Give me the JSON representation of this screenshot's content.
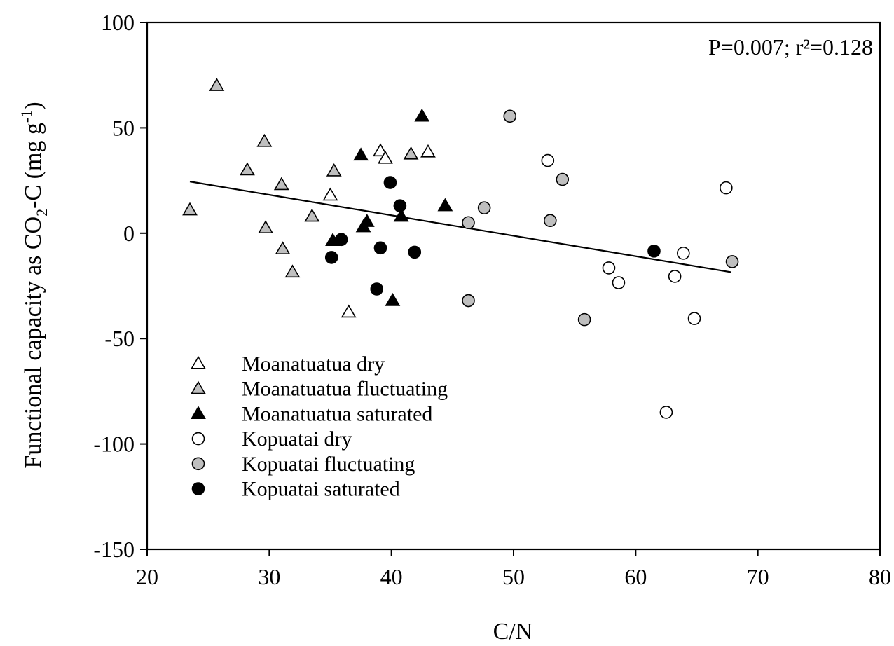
{
  "chart_data": {
    "type": "scatter",
    "xlabel": "C/N",
    "ylabel_parts": {
      "main": "Functional capacity as CO",
      "sub": "2",
      "mid": "-C (mg g",
      "sup": "-1",
      "end": ")"
    },
    "xlim": [
      20,
      80
    ],
    "ylim": [
      -150,
      100
    ],
    "xticks": [
      "20",
      "30",
      "40",
      "50",
      "60",
      "70",
      "80"
    ],
    "yticks": [
      "100",
      "50",
      "0",
      "-50",
      "-100",
      "-150"
    ],
    "annotation": "P=0.007; r²=0.128",
    "grid": false,
    "legend_position": "bottom-left",
    "trendline": {
      "x": [
        23.5,
        67.8
      ],
      "y": [
        24.5,
        -18.5
      ]
    },
    "series": [
      {
        "name": "Moanatuatua dry",
        "marker": "triangle",
        "fill": "#ffffff",
        "points": [
          [
            39.1,
            39
          ],
          [
            39.5,
            35.5
          ],
          [
            43.0,
            38.5
          ],
          [
            35.0,
            18
          ],
          [
            36.5,
            -37.5
          ]
        ]
      },
      {
        "name": "Moanatuatua fluctuating",
        "marker": "triangle",
        "fill": "#bfbfbf",
        "points": [
          [
            23.5,
            11
          ],
          [
            25.7,
            70
          ],
          [
            28.2,
            30
          ],
          [
            29.6,
            43.5
          ],
          [
            29.7,
            2.5
          ],
          [
            31.0,
            23
          ],
          [
            31.1,
            -7.5
          ],
          [
            31.9,
            -18.5
          ],
          [
            33.5,
            8
          ],
          [
            35.3,
            29.5
          ],
          [
            41.6,
            37.5
          ]
        ]
      },
      {
        "name": "Moanatuatua saturated",
        "marker": "triangle",
        "fill": "#000000",
        "points": [
          [
            37.5,
            37
          ],
          [
            38.0,
            5.5
          ],
          [
            37.7,
            3
          ],
          [
            35.2,
            -3.5
          ],
          [
            40.1,
            -32
          ],
          [
            40.8,
            8
          ],
          [
            42.5,
            55.5
          ],
          [
            44.4,
            13
          ]
        ]
      },
      {
        "name": "Kopuatai dry",
        "marker": "circle",
        "fill": "#ffffff",
        "points": [
          [
            52.8,
            34.5
          ],
          [
            57.8,
            -16.5
          ],
          [
            58.6,
            -23.5
          ],
          [
            62.5,
            -85
          ],
          [
            63.2,
            -20.5
          ],
          [
            63.9,
            -9.5
          ],
          [
            64.8,
            -40.5
          ],
          [
            67.4,
            21.5
          ]
        ]
      },
      {
        "name": "Kopuatai fluctuating",
        "marker": "circle",
        "fill": "#bfbfbf",
        "points": [
          [
            46.3,
            5
          ],
          [
            46.3,
            -32
          ],
          [
            47.6,
            12
          ],
          [
            49.7,
            55.5
          ],
          [
            53.0,
            6
          ],
          [
            54.0,
            25.5
          ],
          [
            55.8,
            -41
          ],
          [
            67.9,
            -13.5
          ]
        ]
      },
      {
        "name": "Kopuatai saturated",
        "marker": "circle",
        "fill": "#000000",
        "points": [
          [
            35.1,
            -11.5
          ],
          [
            35.9,
            -3
          ],
          [
            39.1,
            -7
          ],
          [
            39.9,
            24
          ],
          [
            38.8,
            -26.5
          ],
          [
            40.7,
            13
          ],
          [
            41.9,
            -9
          ],
          [
            61.5,
            -8.5
          ]
        ]
      }
    ]
  }
}
